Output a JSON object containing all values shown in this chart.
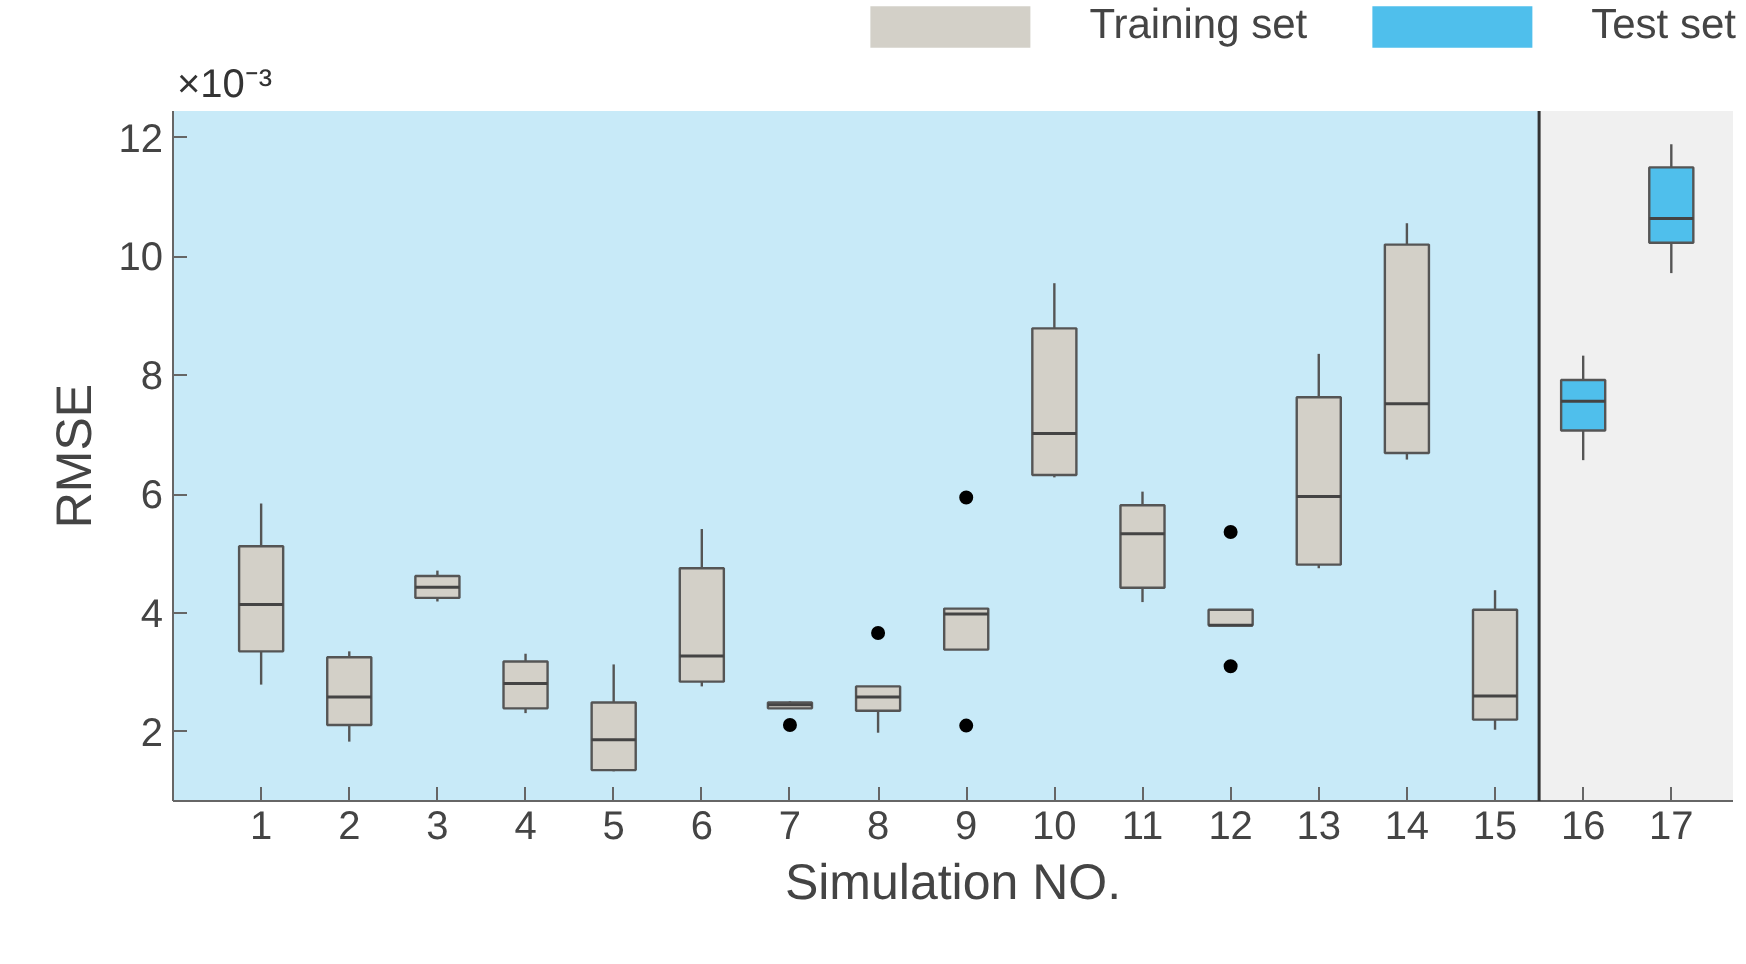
{
  "chart_data": {
    "type": "box",
    "xlabel": "Simulation NO.",
    "ylabel": "RMSE",
    "annotations": [
      "×10⁻³"
    ],
    "x": [
      1,
      2,
      3,
      4,
      5,
      6,
      7,
      8,
      9,
      10,
      11,
      12,
      13,
      14,
      15,
      16,
      17
    ],
    "xlim": [
      0,
      17.7
    ],
    "xticks": [
      1,
      2,
      3,
      4,
      5,
      6,
      7,
      8,
      9,
      10,
      11,
      12,
      13,
      14,
      15,
      16,
      17
    ],
    "ylim": [
      0.83,
      12.45
    ],
    "yticks": [
      2,
      4,
      6,
      8,
      10,
      12
    ],
    "legend": "top right",
    "bands": [
      {
        "axis": "x",
        "from": 0,
        "to": 15.5,
        "color": "#c8eaf8"
      },
      {
        "axis": "x",
        "from": 15.5,
        "to": 17.7,
        "color": "#f0f0f0"
      }
    ],
    "ref_lines": [
      {
        "axis": "x",
        "value": 15.5,
        "color": "#333333"
      }
    ],
    "series": [
      {
        "name": "Training set",
        "color": "#d3d0c8",
        "boxes": [
          {
            "low": 2.79,
            "q1": 3.35,
            "median": 4.14,
            "q3": 5.12,
            "high": 5.84
          },
          {
            "low": 1.83,
            "q1": 2.11,
            "median": 2.58,
            "q3": 3.25,
            "high": 3.35
          },
          {
            "low": 4.19,
            "q1": 4.25,
            "median": 4.43,
            "q3": 4.62,
            "high": 4.71
          },
          {
            "low": 2.31,
            "q1": 2.39,
            "median": 2.81,
            "q3": 3.18,
            "high": 3.31
          },
          {
            "low": 1.33,
            "q1": 1.35,
            "median": 1.86,
            "q3": 2.49,
            "high": 3.13
          },
          {
            "low": 2.76,
            "q1": 2.84,
            "median": 3.27,
            "q3": 4.75,
            "high": 5.41
          },
          {
            "low": 2.39,
            "q1": 2.39,
            "median": 2.45,
            "q3": 2.49,
            "high": 2.51,
            "outliers": [
              2.11
            ]
          },
          {
            "low": 1.98,
            "q1": 2.35,
            "median": 2.58,
            "q3": 2.76,
            "high": 2.76,
            "outliers": [
              3.66
            ]
          },
          {
            "low": 3.38,
            "q1": 3.38,
            "median": 3.98,
            "q3": 4.07,
            "high": 4.07,
            "outliers": [
              5.94,
              2.1
            ]
          },
          {
            "low": 6.28,
            "q1": 6.32,
            "median": 7.02,
            "q3": 8.79,
            "high": 9.55
          },
          {
            "low": 4.18,
            "q1": 4.42,
            "median": 5.33,
            "q3": 5.81,
            "high": 6.04
          },
          {
            "low": 3.79,
            "q1": 3.79,
            "median": 3.79,
            "q3": 4.05,
            "high": 4.05,
            "outliers": [
              5.36,
              3.1
            ]
          },
          {
            "low": 4.75,
            "q1": 4.81,
            "median": 5.96,
            "q3": 7.63,
            "high": 8.36
          },
          {
            "low": 6.58,
            "q1": 6.69,
            "median": 7.52,
            "q3": 10.2,
            "high": 10.56
          },
          {
            "low": 2.03,
            "q1": 2.2,
            "median": 2.6,
            "q3": 4.05,
            "high": 4.38
          },
          null,
          null
        ]
      },
      {
        "name": "Test set",
        "color": "#4fbfec",
        "boxes": [
          null,
          null,
          null,
          null,
          null,
          null,
          null,
          null,
          null,
          null,
          null,
          null,
          null,
          null,
          null,
          {
            "low": 6.57,
            "q1": 7.07,
            "median": 7.56,
            "q3": 7.92,
            "high": 8.33
          },
          {
            "low": 9.72,
            "q1": 10.23,
            "median": 10.64,
            "q3": 11.5,
            "high": 11.89
          }
        ]
      }
    ]
  }
}
